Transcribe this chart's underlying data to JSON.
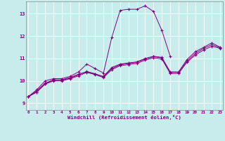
{
  "title": "",
  "xlabel": "Windchill (Refroidissement éolien,°C)",
  "ylabel": "",
  "background_color": "#c8ecec",
  "line_color": "#800080",
  "x_ticks": [
    0,
    1,
    2,
    3,
    4,
    5,
    6,
    7,
    8,
    9,
    10,
    11,
    12,
    13,
    14,
    15,
    16,
    17,
    18,
    19,
    20,
    21,
    22,
    23
  ],
  "y_ticks": [
    9,
    10,
    11,
    12,
    13
  ],
  "xlim": [
    -0.3,
    23.3
  ],
  "ylim": [
    8.7,
    13.55
  ],
  "series": [
    [
      9.3,
      9.6,
      10.0,
      10.1,
      10.1,
      10.2,
      10.4,
      10.75,
      10.55,
      10.35,
      11.95,
      13.15,
      13.2,
      13.2,
      13.35,
      13.1,
      12.25,
      11.1,
      null,
      null,
      null,
      null,
      null,
      null
    ],
    [
      9.3,
      9.55,
      9.9,
      10.05,
      10.05,
      10.15,
      10.3,
      10.4,
      10.3,
      10.2,
      10.6,
      10.75,
      10.8,
      10.85,
      11.0,
      11.1,
      11.05,
      10.4,
      10.4,
      10.95,
      11.3,
      11.5,
      11.7,
      11.5
    ],
    [
      9.3,
      9.5,
      9.88,
      10.02,
      10.02,
      10.12,
      10.27,
      10.42,
      10.32,
      10.18,
      10.55,
      10.72,
      10.78,
      10.83,
      10.98,
      11.08,
      11.03,
      10.38,
      10.38,
      10.88,
      11.22,
      11.45,
      11.62,
      11.48
    ],
    [
      9.3,
      9.5,
      9.85,
      10.0,
      10.0,
      10.1,
      10.22,
      10.38,
      10.28,
      10.15,
      10.5,
      10.68,
      10.73,
      10.78,
      10.93,
      11.03,
      10.98,
      10.33,
      10.33,
      10.83,
      11.15,
      11.38,
      11.55,
      11.45
    ]
  ]
}
